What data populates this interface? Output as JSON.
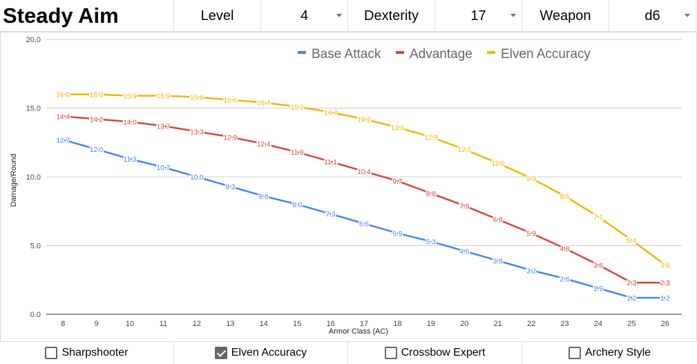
{
  "header": {
    "title": "Steady Aim",
    "level_label": "Level",
    "level_value": "4",
    "dexterity_label": "Dexterity",
    "dexterity_value": "17",
    "weapon_label": "Weapon",
    "weapon_value": "d6"
  },
  "footer": {
    "options": [
      {
        "label": "Sharpshooter",
        "checked": false
      },
      {
        "label": "Elven Accuracy",
        "checked": true
      },
      {
        "label": "Crossbow Expert",
        "checked": false
      },
      {
        "label": "Archery Style",
        "checked": false
      }
    ]
  },
  "chart_data": {
    "type": "line",
    "x": [
      8,
      9,
      10,
      11,
      12,
      13,
      14,
      15,
      16,
      17,
      18,
      19,
      20,
      21,
      22,
      23,
      24,
      25,
      26
    ],
    "xlabel": "Armor Class (AC)",
    "ylabel": "Damage/Round",
    "ylim": [
      0,
      20
    ],
    "yticks": [
      "0.0",
      "5.0",
      "10.0",
      "15.0",
      "20.0"
    ],
    "grid": true,
    "legend_position": "top",
    "series": [
      {
        "name": "Base Attack",
        "color": "#4285f4",
        "values": [
          12.7,
          12.0,
          11.3,
          10.7,
          10.0,
          9.3,
          8.6,
          8.0,
          7.3,
          6.6,
          5.9,
          5.3,
          4.6,
          3.9,
          3.2,
          2.6,
          1.9,
          1.2,
          1.2
        ]
      },
      {
        "name": "Advantage",
        "color": "#db4437",
        "values": [
          14.4,
          14.2,
          14.0,
          13.7,
          13.3,
          12.9,
          12.4,
          11.8,
          11.1,
          10.4,
          9.7,
          8.8,
          7.9,
          6.9,
          5.9,
          4.8,
          3.6,
          2.3,
          2.3
        ]
      },
      {
        "name": "Elven Accuracy",
        "color": "#f4b400",
        "values": [
          16.0,
          16.0,
          15.9,
          15.9,
          15.8,
          15.6,
          15.4,
          15.1,
          14.7,
          14.2,
          13.6,
          12.9,
          12.0,
          11.0,
          9.9,
          8.6,
          7.1,
          5.4,
          3.6
        ]
      }
    ]
  }
}
